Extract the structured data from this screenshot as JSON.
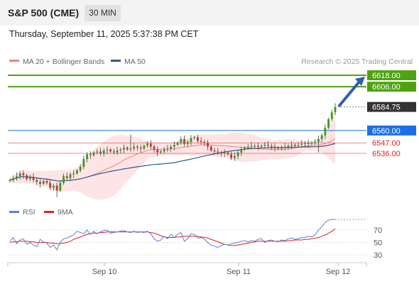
{
  "header": {
    "symbol": "S&P 500 (CME)",
    "timeframe": "30 MIN",
    "datetime": "Thursday, September 11, 2025 5:37:38 PM CET"
  },
  "legend": {
    "ma20_label": "MA 20 + Bollinger Bands",
    "ma50_label": "MA 50",
    "ma20_color": "#f08080",
    "ma50_color": "#2e5a8c",
    "credit": "Research © 2025 Trading Central"
  },
  "rsi_legend": {
    "rsi_label": "RSI",
    "ma_label": "9MA",
    "rsi_color": "#5a7fd6",
    "ma_color": "#e02020"
  },
  "chart_data": [
    {
      "type": "candlestick",
      "ylim": [
        6490,
        6630
      ],
      "levels": [
        {
          "value": 6618.0,
          "label": "6618.00",
          "color": "#4fa312",
          "kind": "resistance"
        },
        {
          "value": 6606.0,
          "label": "6606.00",
          "color": "#4fa312",
          "kind": "resistance"
        },
        {
          "value": 6584.75,
          "label": "6584.75",
          "color": "#333333",
          "kind": "last"
        },
        {
          "value": 6560.0,
          "label": "6560.00",
          "color": "#1e6ee6",
          "kind": "pivot"
        },
        {
          "value": 6547.0,
          "label": "6547.00",
          "color": "#e02020",
          "kind": "support"
        },
        {
          "value": 6536.0,
          "label": "6536.00",
          "color": "#e02020",
          "kind": "support"
        }
      ],
      "x_ticks": [
        "Sep 10",
        "Sep 11",
        "Sep 12"
      ],
      "close": [
        6508,
        6510,
        6512,
        6515,
        6513,
        6509,
        6511,
        6508,
        6506,
        6504,
        6507,
        6505,
        6500,
        6502,
        6497,
        6505,
        6512,
        6510,
        6514,
        6515,
        6518,
        6522,
        6530,
        6535,
        6534,
        6537,
        6538,
        6536,
        6539,
        6540,
        6538,
        6537,
        6539,
        6540,
        6542,
        6540,
        6541,
        6543,
        6542,
        6541,
        6544,
        6546,
        6543,
        6540,
        6537,
        6538,
        6540,
        6541,
        6543,
        6545,
        6547,
        6551,
        6546,
        6548,
        6552,
        6553,
        6549,
        6548,
        6547,
        6543,
        6539,
        6538,
        6537,
        6536,
        6537,
        6535,
        6531,
        6533,
        6537,
        6540,
        6542,
        6543,
        6544,
        6544,
        6543,
        6544,
        6545,
        6544,
        6543,
        6542,
        6541,
        6542,
        6543,
        6544,
        6545,
        6544,
        6545,
        6546,
        6547,
        6546,
        6547,
        6548,
        6551,
        6555,
        6563,
        6572,
        6579,
        6584.75
      ],
      "arrow_target": 6618
    },
    {
      "type": "line",
      "title": "RSI",
      "ylim": [
        20,
        90
      ],
      "y_ticks": [
        70,
        50,
        30
      ],
      "series": [
        {
          "name": "RSI",
          "values": [
            52,
            58,
            48,
            54,
            56,
            47,
            50,
            46,
            43,
            55,
            51,
            49,
            42,
            46,
            38,
            50,
            56,
            57,
            60,
            62,
            68,
            66,
            64,
            70,
            63,
            68,
            64,
            67,
            69,
            70,
            65,
            66,
            67,
            68,
            69,
            67,
            66,
            68,
            66,
            67,
            66,
            68,
            64,
            56,
            52,
            54,
            60,
            56,
            63,
            58,
            63,
            66,
            52,
            56,
            64,
            63,
            57,
            58,
            55,
            50,
            46,
            44,
            42,
            45,
            47,
            46,
            48,
            49,
            50,
            52,
            53,
            51,
            53,
            52,
            55,
            56,
            50,
            53,
            54,
            52,
            51,
            54,
            53,
            56,
            57,
            55,
            56,
            58,
            58,
            60,
            59,
            62,
            70,
            75,
            82,
            86,
            87,
            87
          ]
        },
        {
          "name": "9MA",
          "values": [
            50,
            51,
            51,
            52,
            52,
            52,
            51,
            51,
            50,
            50,
            50,
            50,
            49,
            49,
            48,
            48,
            49,
            50,
            52,
            55,
            57,
            59,
            61,
            63,
            64,
            65,
            65,
            66,
            66,
            67,
            67,
            67,
            67,
            67,
            67,
            67,
            67,
            67,
            67,
            67,
            67,
            67,
            66,
            65,
            63,
            61,
            59,
            58,
            58,
            58,
            59,
            59,
            60,
            60,
            60,
            60,
            60,
            59,
            58,
            57,
            55,
            53,
            51,
            49,
            47,
            46,
            45,
            45,
            46,
            47,
            48,
            49,
            50,
            51,
            52,
            52,
            52,
            52,
            52,
            52,
            52,
            52,
            52,
            53,
            53,
            54,
            54,
            54,
            55,
            55,
            56,
            57,
            58,
            60,
            62,
            65,
            68,
            72
          ]
        }
      ]
    }
  ]
}
